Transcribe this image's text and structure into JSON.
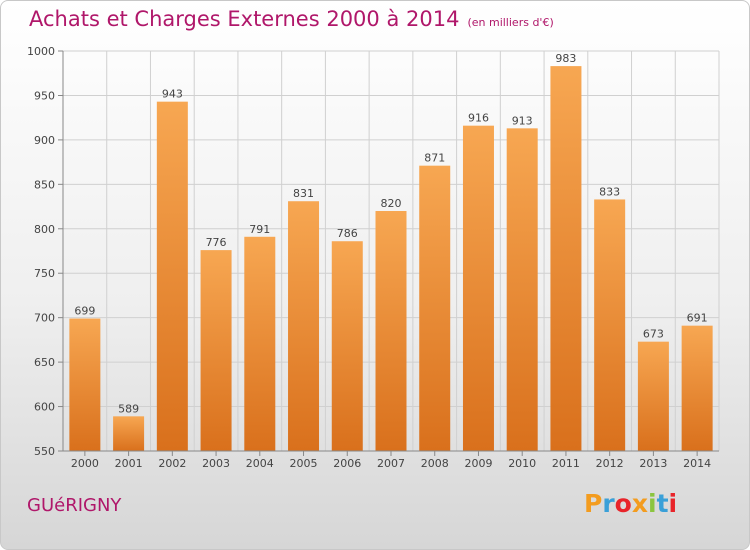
{
  "header": {
    "title": "Achats et Charges Externes 2000 à 2014",
    "subtitle": "(en milliers d'€)"
  },
  "footer": {
    "town": "GUéRIGNY",
    "logo_letters": [
      "P",
      "r",
      "o",
      "x",
      "i",
      "t",
      "i"
    ],
    "logo_colors": [
      "#f39c1f",
      "#3aa0d8",
      "#e8242a",
      "#f39c1f",
      "#8bc53f",
      "#3aa0d8",
      "#e8242a"
    ]
  },
  "chart_data": {
    "type": "bar",
    "categories": [
      "2000",
      "2001",
      "2002",
      "2003",
      "2004",
      "2005",
      "2006",
      "2007",
      "2008",
      "2009",
      "2010",
      "2011",
      "2012",
      "2013",
      "2014"
    ],
    "values": [
      699,
      589,
      943,
      776,
      791,
      831,
      786,
      820,
      871,
      916,
      913,
      983,
      833,
      673,
      691
    ],
    "ylim": [
      550,
      1000
    ],
    "yticks": [
      550,
      600,
      650,
      700,
      750,
      800,
      850,
      900,
      950,
      1000
    ],
    "bar_color_top": "#f7a752",
    "bar_color_bottom": "#d9701c",
    "grid": true,
    "data_labels": true
  }
}
